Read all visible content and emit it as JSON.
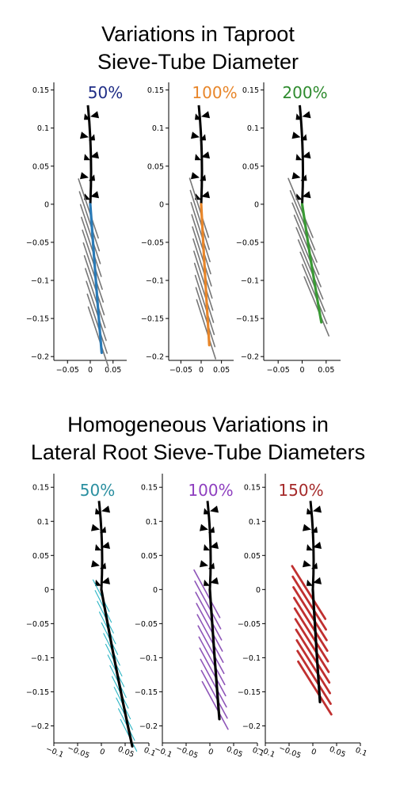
{
  "figure": {
    "top_title_lines": [
      "Variations in Taproot",
      "Sieve-Tube Diameter"
    ],
    "bottom_title_lines": [
      "Homogeneous Variations in",
      "Lateral Root Sieve-Tube Diameters"
    ]
  },
  "chart_data": [
    {
      "type": "line",
      "group": "Variations in Taproot Sieve-Tube Diameter",
      "label": "50%",
      "label_color": "#1f2d86",
      "taproot_color": "#2a7ab6",
      "lateral_color": "#777777",
      "taproot_end": [
        0.025,
        -0.195
      ],
      "lateral_count": 11,
      "lateral_dx": -0.028,
      "lateral_dy": 0.05,
      "xlim": [
        -0.08,
        0.08
      ],
      "ylim": [
        -0.205,
        0.16
      ],
      "xticks": [
        -0.05,
        0,
        0.05
      ],
      "xtick_labels": [
        "−0.05",
        "0",
        "0.05"
      ],
      "yticks": [
        0.15,
        0.1,
        0.05,
        0,
        -0.05,
        -0.1,
        -0.15,
        -0.2
      ],
      "ytick_labels": [
        "0.15",
        "0.1",
        "0.05",
        "0",
        "−0.05",
        "−0.1",
        "−0.15",
        "−0.2"
      ]
    },
    {
      "type": "line",
      "group": "Variations in Taproot Sieve-Tube Diameter",
      "label": "100%",
      "label_color": "#e8862a",
      "taproot_color": "#e8862a",
      "lateral_color": "#777777",
      "taproot_end": [
        0.02,
        -0.185
      ],
      "lateral_count": 11,
      "lateral_dx": -0.03,
      "lateral_dy": 0.05,
      "xlim": [
        -0.08,
        0.08
      ],
      "ylim": [
        -0.205,
        0.16
      ],
      "xticks": [
        -0.05,
        0,
        0.05
      ],
      "xtick_labels": [
        "−0.05",
        "0",
        "0.05"
      ],
      "yticks": [
        0.15,
        0.1,
        0.05,
        0,
        -0.05,
        -0.1,
        -0.15,
        -0.2
      ],
      "ytick_labels": [
        "0.15",
        "0.1",
        "0.05",
        "0",
        "−0.05",
        "−0.1",
        "−0.15",
        "−0.2"
      ]
    },
    {
      "type": "line",
      "group": "Variations in Taproot Sieve-Tube Diameter",
      "label": "200%",
      "label_color": "#2e8b2e",
      "taproot_color": "#3a9a35",
      "lateral_color": "#777777",
      "taproot_end": [
        0.04,
        -0.155
      ],
      "lateral_count": 9,
      "lateral_dx": -0.033,
      "lateral_dy": 0.05,
      "xlim": [
        -0.08,
        0.08
      ],
      "ylim": [
        -0.205,
        0.16
      ],
      "xticks": [
        -0.05,
        0,
        0.05
      ],
      "xtick_labels": [
        "−0.05",
        "0",
        "0.05"
      ],
      "yticks": [
        0.15,
        0.1,
        0.05,
        0,
        -0.05,
        -0.1,
        -0.15,
        -0.2
      ],
      "ytick_labels": [
        "0.15",
        "0.1",
        "0.05",
        "0",
        "−0.05",
        "−0.1",
        "−0.15",
        "−0.2"
      ]
    },
    {
      "type": "line",
      "group": "Homogeneous Variations in Lateral Root Sieve-Tube Diameters",
      "label": "50%",
      "label_color": "#2a8fa0",
      "taproot_color": "#000000",
      "lateral_color": "#2bb5c4",
      "lateral_width": 1.1,
      "taproot_end": [
        0.065,
        -0.23
      ],
      "lateral_count": 14,
      "lateral_dx": -0.022,
      "lateral_dy": 0.03,
      "xlim": [
        -0.1,
        0.1
      ],
      "ylim": [
        -0.225,
        0.17
      ],
      "xticks": [
        -0.1,
        -0.05,
        0,
        0.05,
        0.1
      ],
      "xtick_labels": [
        "−0.1",
        "−0.05",
        "0",
        "0.05",
        "0.1"
      ],
      "yticks": [
        0.15,
        0.1,
        0.05,
        0,
        -0.05,
        -0.1,
        -0.15,
        -0.2
      ],
      "ytick_labels": [
        "0.15",
        "0.1",
        "0.05",
        "0",
        "−0.05",
        "−0.1",
        "−0.15",
        "−0.2"
      ]
    },
    {
      "type": "line",
      "group": "Homogeneous Variations in Lateral Root Sieve-Tube Diameters",
      "label": "100%",
      "label_color": "#8e3fbf",
      "taproot_color": "#000000",
      "lateral_color": "#8e55b8",
      "lateral_width": 1.6,
      "taproot_end": [
        0.02,
        -0.19
      ],
      "lateral_count": 11,
      "lateral_dx": -0.035,
      "lateral_dy": 0.045,
      "xlim": [
        -0.1,
        0.1
      ],
      "ylim": [
        -0.225,
        0.17
      ],
      "xticks": [
        -0.1,
        -0.05,
        0,
        0.05,
        0.1
      ],
      "xtick_labels": [
        "−0.1",
        "−0.05",
        "0",
        "0.05",
        "0.1"
      ],
      "yticks": [
        0.15,
        0.1,
        0.05,
        0,
        -0.05,
        -0.1,
        -0.15,
        -0.2
      ],
      "ytick_labels": [
        "0.15",
        "0.1",
        "0.05",
        "0",
        "−0.05",
        "−0.1",
        "−0.15",
        "−0.2"
      ]
    },
    {
      "type": "line",
      "group": "Homogeneous Variations in Lateral Root Sieve-Tube Diameters",
      "label": "150%",
      "label_color": "#a52a2a",
      "taproot_color": "#000000",
      "lateral_color": "#c03030",
      "lateral_width": 2.8,
      "taproot_end": [
        0.015,
        -0.165
      ],
      "lateral_count": 10,
      "lateral_dx": -0.045,
      "lateral_dy": 0.05,
      "xlim": [
        -0.1,
        0.1
      ],
      "ylim": [
        -0.225,
        0.17
      ],
      "xticks": [
        -0.1,
        -0.05,
        0,
        0.05,
        0.1
      ],
      "xtick_labels": [
        "−0.1",
        "−0.05",
        "0",
        "0.05",
        "0.1"
      ],
      "yticks": [
        0.15,
        0.1,
        0.05,
        0,
        -0.05,
        -0.1,
        -0.15,
        -0.2
      ],
      "ytick_labels": [
        "0.15",
        "0.1",
        "0.05",
        "0",
        "−0.05",
        "−0.1",
        "−0.15",
        "−0.2"
      ]
    }
  ]
}
